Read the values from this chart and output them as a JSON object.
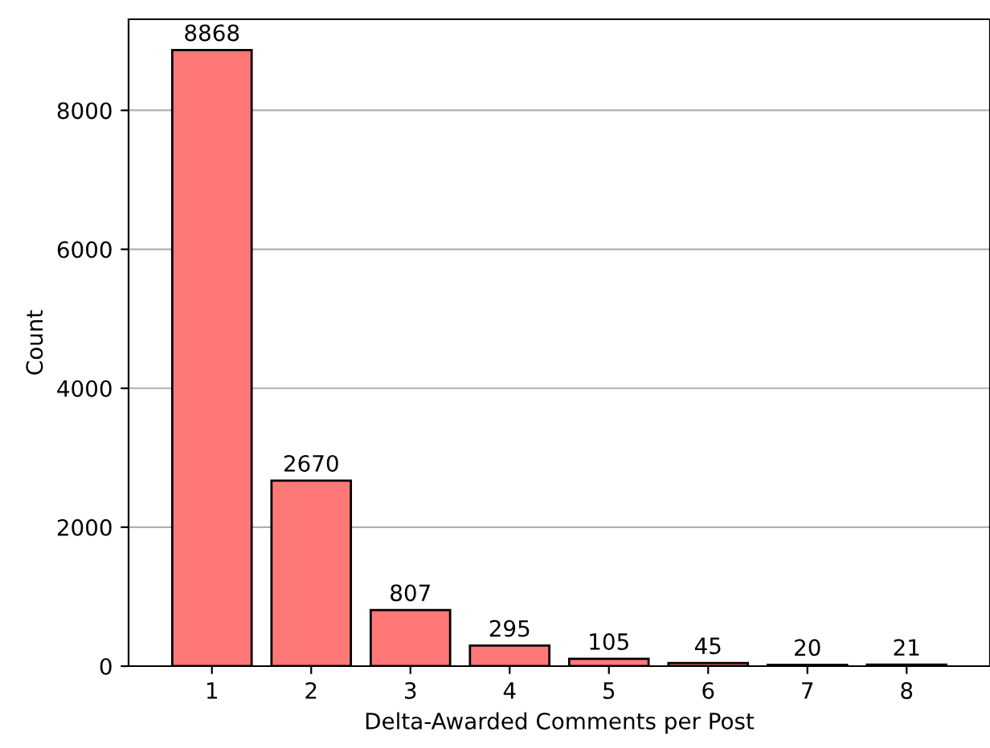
{
  "chart_data": {
    "type": "bar",
    "xlabel": "Delta-Awarded Comments per Post",
    "ylabel": "Count",
    "categories": [
      "1",
      "2",
      "3",
      "4",
      "5",
      "6",
      "7",
      "8"
    ],
    "values": [
      8868,
      2670,
      807,
      295,
      105,
      45,
      20,
      21
    ],
    "color": "#ff7878",
    "data_labels": true,
    "ylim": [
      0,
      9311
    ],
    "yticks": [
      0,
      2000,
      4000,
      6000,
      8000
    ],
    "grid": "y"
  }
}
